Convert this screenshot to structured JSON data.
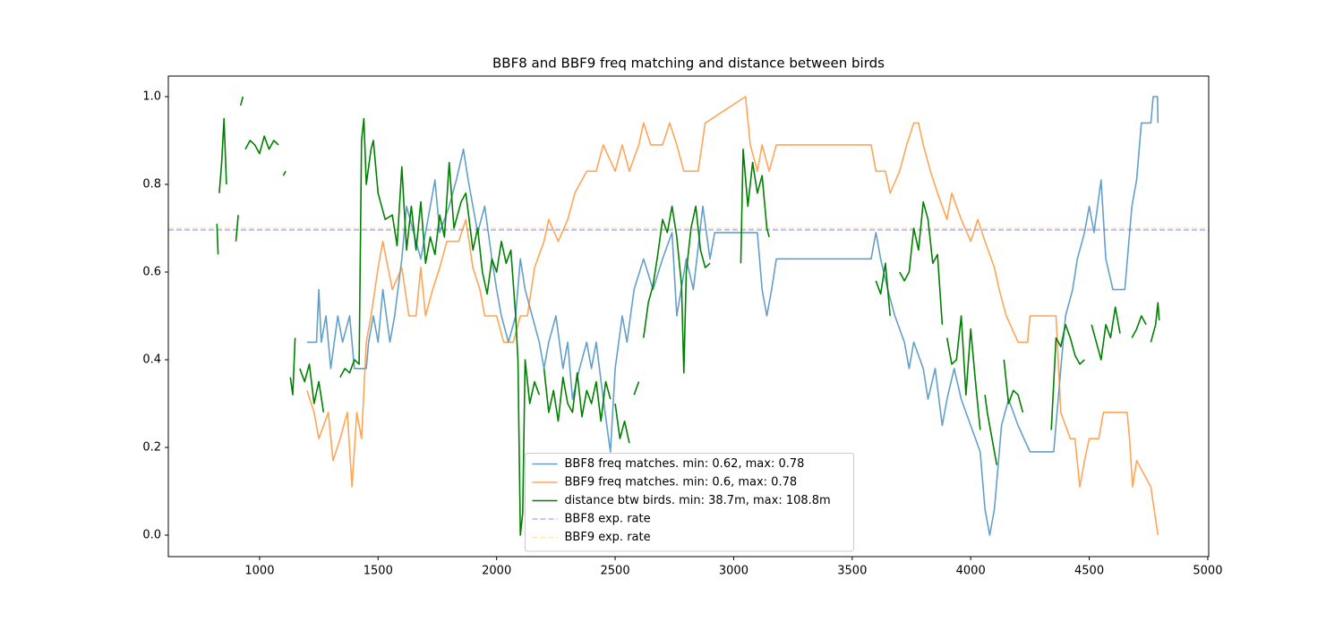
{
  "chart_data": {
    "type": "line",
    "title": "BBF8 and BBF9 freq matching and distance between birds",
    "xlim": [
      615,
      5004
    ],
    "ylim": [
      -0.049,
      1.047
    ],
    "xticks": [
      1000,
      1500,
      2000,
      2500,
      3000,
      3500,
      4000,
      4500,
      5000
    ],
    "yticks": [
      {
        "value": 0,
        "label": "0.0"
      },
      0.2,
      0.4,
      0.6,
      0.8,
      {
        "value": 1,
        "label": "1.0"
      }
    ],
    "series": [
      {
        "name": "BBF8 freq matches. min: 0.62, max: 0.78",
        "color": "#1f77b4",
        "alpha": 0.7,
        "x": [
          1200,
          1240,
          1250,
          1260,
          1280,
          1300,
          1330,
          1350,
          1380,
          1400,
          1450,
          1460,
          1480,
          1500,
          1520,
          1550,
          1570,
          1600,
          1620,
          1650,
          1680,
          1700,
          1720,
          1740,
          1760,
          1800,
          1830,
          1860,
          1880,
          1900,
          1920,
          1950,
          1980,
          2000,
          2020,
          2050,
          2080,
          2100,
          2120,
          2150,
          2180,
          2200,
          2220,
          2250,
          2280,
          2300,
          2320,
          2350,
          2380,
          2400,
          2420,
          2450,
          2480,
          2500,
          2530,
          2550,
          2580,
          2620,
          2660,
          2700,
          2740,
          2760,
          2800,
          2830,
          2870,
          2900,
          2920,
          3000,
          3100,
          3120,
          3140,
          3160,
          3180,
          3300,
          3580,
          3600,
          3620,
          3650,
          3680,
          3720,
          3740,
          3760,
          3800,
          3820,
          3850,
          3880,
          3900,
          3930,
          3960,
          4000,
          4040,
          4060,
          4080,
          4100,
          4130,
          4160,
          4200,
          4250,
          4350,
          4380,
          4400,
          4430,
          4450,
          4480,
          4500,
          4520,
          4550,
          4570,
          4600,
          4650,
          4680,
          4700,
          4720,
          4760,
          4770,
          4788,
          4790
        ],
        "values": [
          0.44,
          0.44,
          0.56,
          0.44,
          0.5,
          0.38,
          0.5,
          0.44,
          0.5,
          0.38,
          0.38,
          0.44,
          0.5,
          0.44,
          0.56,
          0.44,
          0.5,
          0.63,
          0.75,
          0.69,
          0.63,
          0.69,
          0.75,
          0.81,
          0.69,
          0.75,
          0.81,
          0.88,
          0.81,
          0.75,
          0.69,
          0.75,
          0.63,
          0.56,
          0.5,
          0.44,
          0.5,
          0.63,
          0.56,
          0.5,
          0.44,
          0.38,
          0.44,
          0.5,
          0.38,
          0.44,
          0.31,
          0.38,
          0.44,
          0.38,
          0.44,
          0.31,
          0.19,
          0.38,
          0.5,
          0.44,
          0.56,
          0.63,
          0.56,
          0.63,
          0.69,
          0.5,
          0.63,
          0.56,
          0.75,
          0.63,
          0.69,
          0.69,
          0.69,
          0.56,
          0.5,
          0.56,
          0.63,
          0.63,
          0.63,
          0.69,
          0.63,
          0.56,
          0.5,
          0.44,
          0.38,
          0.44,
          0.38,
          0.31,
          0.38,
          0.25,
          0.31,
          0.38,
          0.31,
          0.25,
          0.19,
          0.06,
          0.0,
          0.06,
          0.25,
          0.31,
          0.25,
          0.19,
          0.19,
          0.38,
          0.5,
          0.56,
          0.63,
          0.69,
          0.75,
          0.69,
          0.81,
          0.63,
          0.56,
          0.56,
          0.75,
          0.81,
          0.94,
          0.94,
          1.0,
          1.0,
          0.94
        ]
      },
      {
        "name": "BBF9 freq matches. min: 0.6, max: 0.78",
        "color": "#ff7f0e",
        "alpha": 0.7,
        "x": [
          1200,
          1230,
          1250,
          1290,
          1310,
          1340,
          1370,
          1390,
          1410,
          1430,
          1450,
          1470,
          1500,
          1520,
          1560,
          1600,
          1630,
          1660,
          1680,
          1700,
          1730,
          1760,
          1790,
          1840,
          1870,
          1900,
          1930,
          1950,
          2000,
          2030,
          2070,
          2100,
          2130,
          2160,
          2200,
          2220,
          2260,
          2300,
          2330,
          2380,
          2420,
          2450,
          2500,
          2530,
          2560,
          2600,
          2620,
          2650,
          2700,
          2730,
          2760,
          2790,
          2850,
          2880,
          3050,
          3070,
          3100,
          3120,
          3150,
          3180,
          3580,
          3600,
          3640,
          3660,
          3700,
          3730,
          3760,
          3780,
          3800,
          3830,
          3860,
          3900,
          3920,
          3960,
          4000,
          4030,
          4060,
          4100,
          4120,
          4150,
          4200,
          4240,
          4250,
          4360,
          4380,
          4420,
          4440,
          4460,
          4480,
          4500,
          4540,
          4560,
          4660,
          4670,
          4683,
          4700,
          4760,
          4790
        ],
        "values": [
          0.33,
          0.28,
          0.22,
          0.28,
          0.17,
          0.22,
          0.28,
          0.11,
          0.28,
          0.22,
          0.44,
          0.5,
          0.61,
          0.67,
          0.56,
          0.61,
          0.5,
          0.5,
          0.61,
          0.5,
          0.56,
          0.61,
          0.67,
          0.67,
          0.72,
          0.61,
          0.56,
          0.5,
          0.5,
          0.44,
          0.44,
          0.5,
          0.5,
          0.61,
          0.67,
          0.72,
          0.67,
          0.72,
          0.78,
          0.83,
          0.83,
          0.89,
          0.83,
          0.89,
          0.83,
          0.89,
          0.94,
          0.89,
          0.89,
          0.94,
          0.89,
          0.83,
          0.83,
          0.94,
          1.0,
          0.89,
          0.83,
          0.89,
          0.83,
          0.89,
          0.89,
          0.83,
          0.83,
          0.78,
          0.83,
          0.89,
          0.94,
          0.94,
          0.89,
          0.83,
          0.78,
          0.72,
          0.78,
          0.72,
          0.67,
          0.72,
          0.67,
          0.61,
          0.56,
          0.5,
          0.44,
          0.44,
          0.5,
          0.5,
          0.28,
          0.22,
          0.22,
          0.11,
          0.17,
          0.22,
          0.22,
          0.28,
          0.28,
          0.22,
          0.11,
          0.17,
          0.11,
          0.0
        ]
      },
      {
        "name": "distance btw birds. min: 38.7m, max: 108.8m",
        "color": "#008000",
        "alpha": 1,
        "x": [
          820,
          825,
          827,
          830,
          840,
          850,
          860,
          870,
          880,
          890,
          900,
          910,
          915,
          920,
          930,
          935,
          940,
          960,
          980,
          1000,
          1020,
          1040,
          1060,
          1080,
          1090,
          1100,
          1110,
          1110,
          1110,
          1120,
          1130,
          1140,
          1150,
          1160,
          1170,
          1190,
          1210,
          1230,
          1250,
          1270,
          1290,
          1310,
          1325,
          1340,
          1360,
          1380,
          1400,
          1420,
          1430,
          1440,
          1450,
          1470,
          1480,
          1500,
          1530,
          1560,
          1580,
          1600,
          1620,
          1640,
          1660,
          1680,
          1700,
          1720,
          1740,
          1760,
          1780,
          1800,
          1820,
          1850,
          1870,
          1900,
          1920,
          1940,
          1960,
          1980,
          2000,
          2020,
          2040,
          2060,
          2080,
          2090,
          2100,
          2110,
          2120,
          2140,
          2160,
          2180,
          2190,
          2200,
          2220,
          2240,
          2260,
          2280,
          2300,
          2320,
          2340,
          2360,
          2380,
          2400,
          2420,
          2440,
          2460,
          2480,
          2490,
          2500,
          2520,
          2540,
          2560,
          2570,
          2580,
          2600,
          2610,
          2620,
          2640,
          2660,
          2680,
          2700,
          2720,
          2740,
          2760,
          2780,
          2790,
          2800,
          2820,
          2840,
          2860,
          2880,
          2900,
          2950,
          3030,
          3040,
          3060,
          3080,
          3100,
          3120,
          3140,
          3150,
          3400,
          3600,
          3620,
          3640,
          3660,
          3680,
          3700,
          3720,
          3740,
          3760,
          3780,
          3800,
          3820,
          3840,
          3860,
          3880,
          3890,
          3900,
          3920,
          3940,
          3960,
          3980,
          4000,
          4020,
          4040,
          4050,
          4060,
          4070,
          4090,
          4110,
          4125,
          4140,
          4160,
          4180,
          4200,
          4220,
          4280,
          4340,
          4360,
          4380,
          4400,
          4420,
          4440,
          4460,
          4480,
          4495,
          4510,
          4530,
          4550,
          4570,
          4590,
          4610,
          4630,
          4645,
          4660,
          4670,
          4680,
          4700,
          4720,
          4740,
          4750,
          4760,
          4780,
          4790,
          4795
        ],
        "values": [
          0.71,
          0.64,
          null,
          0.78,
          0.85,
          0.95,
          0.8,
          null,
          0.76,
          null,
          0.67,
          0.73,
          null,
          0.98,
          1.0,
          null,
          0.88,
          0.9,
          0.89,
          0.87,
          0.91,
          0.88,
          0.9,
          0.89,
          null,
          0.82,
          0.83,
          null,
          0.3,
          null,
          0.36,
          0.32,
          0.45,
          null,
          0.38,
          0.35,
          0.39,
          0.3,
          0.35,
          0.28,
          null,
          0.32,
          null,
          0.36,
          0.38,
          0.37,
          0.4,
          0.39,
          0.9,
          0.95,
          0.8,
          0.88,
          0.9,
          0.78,
          0.72,
          0.73,
          0.66,
          0.84,
          0.65,
          0.75,
          0.65,
          0.76,
          0.62,
          0.68,
          0.64,
          0.73,
          0.68,
          0.85,
          0.7,
          0.76,
          0.78,
          0.65,
          0.7,
          0.6,
          0.55,
          0.63,
          0.6,
          0.67,
          0.62,
          0.65,
          0.5,
          0.4,
          0.0,
          0.05,
          0.4,
          0.3,
          0.35,
          0.32,
          null,
          0.38,
          0.28,
          0.33,
          0.26,
          0.36,
          0.3,
          0.28,
          0.37,
          0.27,
          0.33,
          0.3,
          0.35,
          0.26,
          0.35,
          0.31,
          null,
          0.3,
          0.22,
          0.26,
          0.21,
          null,
          0.32,
          0.35,
          null,
          0.45,
          0.53,
          0.57,
          0.64,
          0.72,
          0.69,
          0.75,
          0.68,
          0.57,
          0.37,
          0.6,
          0.7,
          0.75,
          0.65,
          0.61,
          0.62,
          null,
          0.62,
          0.88,
          0.75,
          0.85,
          0.78,
          0.82,
          0.7,
          0.68,
          null,
          0.58,
          0.55,
          0.62,
          0.5,
          null,
          0.6,
          0.58,
          0.6,
          0.7,
          0.65,
          0.76,
          0.72,
          0.62,
          0.64,
          0.48,
          null,
          0.45,
          0.39,
          0.4,
          0.5,
          0.32,
          0.47,
          0.35,
          0.24,
          null,
          0.32,
          0.28,
          0.22,
          0.16,
          null,
          0.4,
          0.3,
          0.33,
          0.32,
          0.28,
          null,
          0.24,
          0.45,
          0.43,
          0.48,
          0.45,
          0.41,
          0.39,
          0.4,
          null,
          0.48,
          0.44,
          0.4,
          0.48,
          0.45,
          0.52,
          0.46,
          null,
          0.55,
          null,
          0.45,
          0.47,
          0.5,
          0.48,
          null,
          0.44,
          0.48,
          0.53,
          0.49
        ]
      }
    ],
    "hlines": [
      {
        "name": "BBF8 exp. rate",
        "color": "#0000ff",
        "alpha": 0.3,
        "value": 0.696
      },
      {
        "name": "BBF9 exp. rate",
        "color": "#ffa500",
        "alpha": 0.3,
        "value": 0.7
      }
    ],
    "legend": "lower center"
  }
}
